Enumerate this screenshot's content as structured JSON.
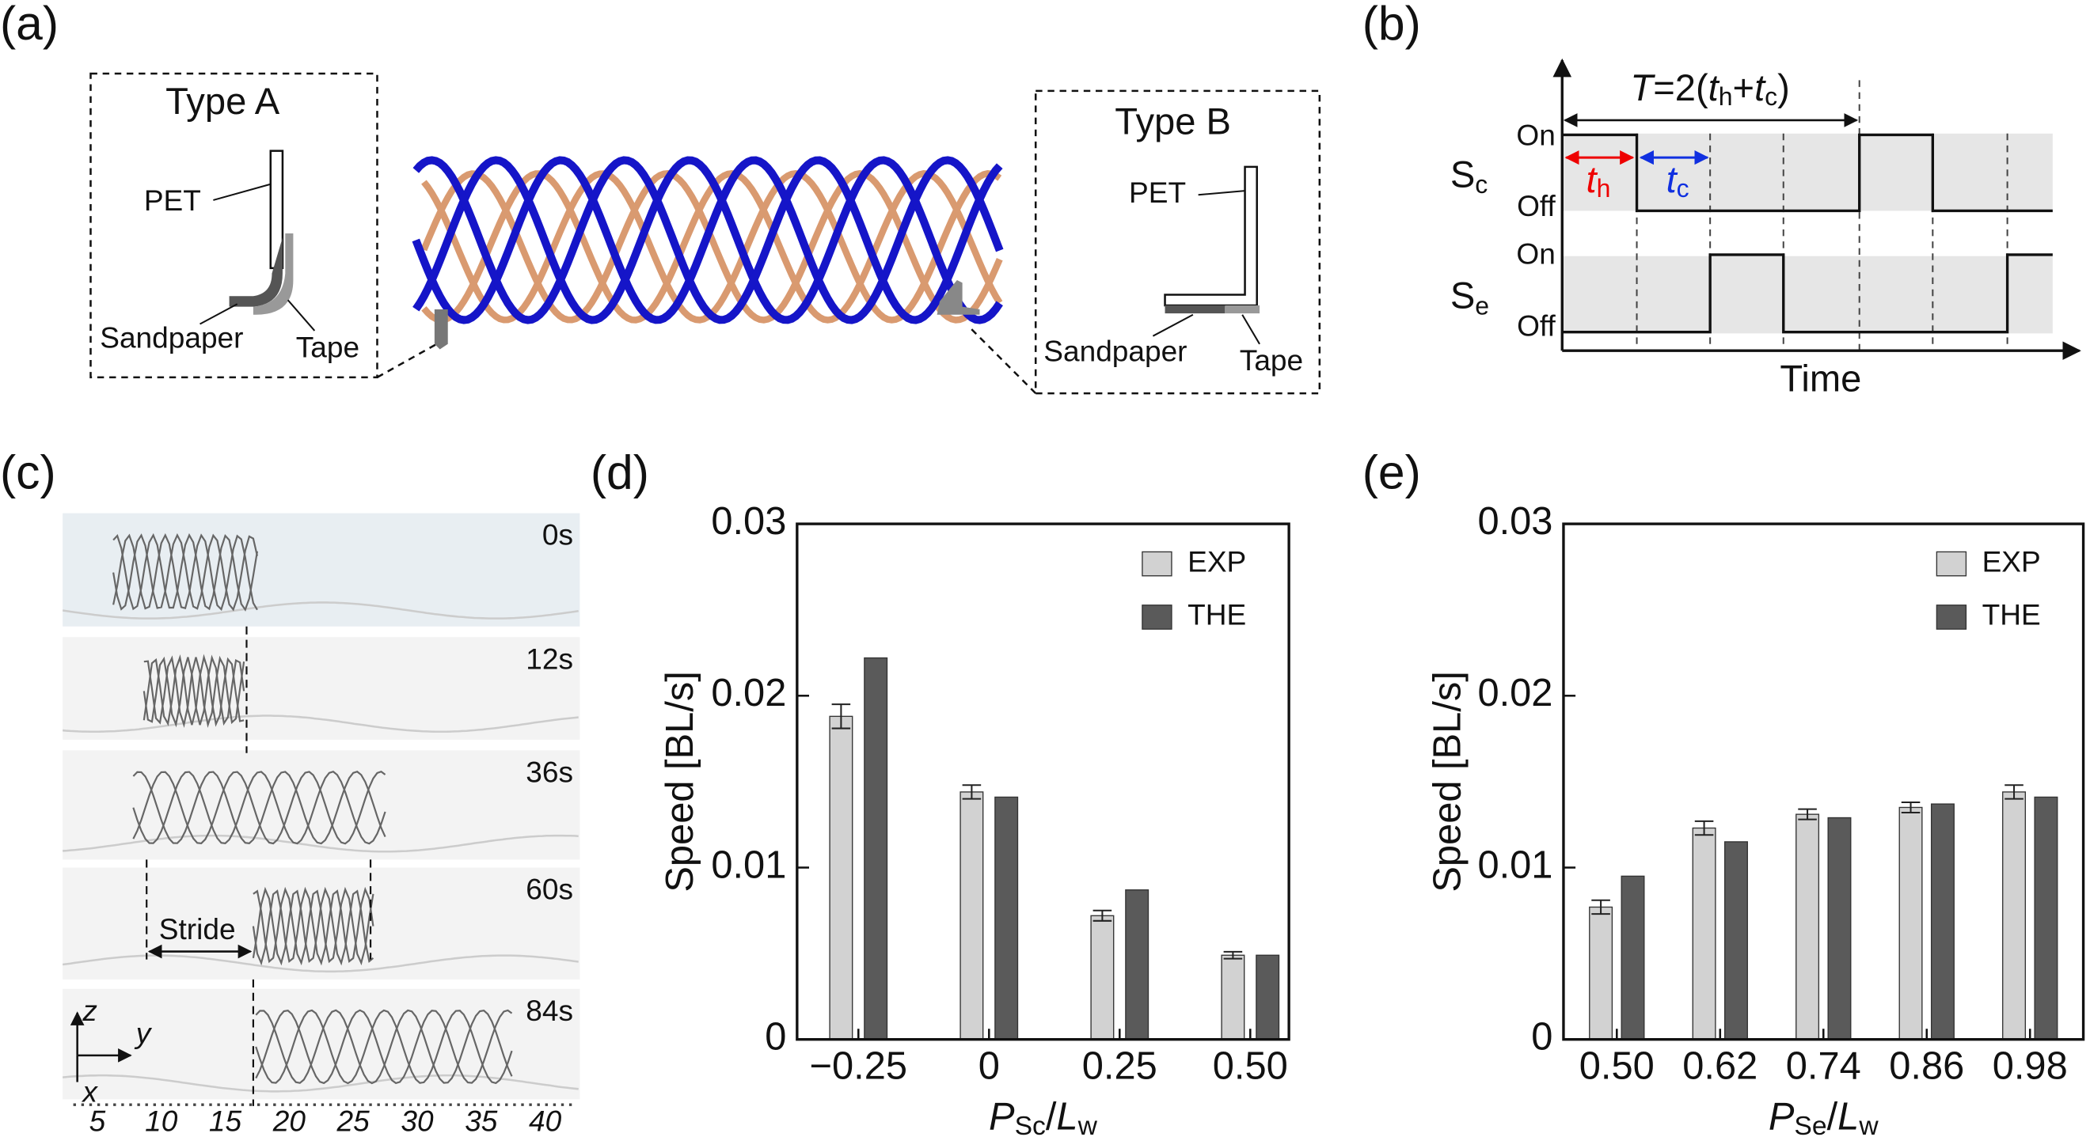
{
  "panels": {
    "a": "(a)",
    "b": "(b)",
    "c": "(c)",
    "d": "(d)",
    "e": "(e)"
  },
  "panel_a": {
    "type_a": {
      "title": "Type A",
      "pet": "PET",
      "sandpaper": "Sandpaper",
      "tape": "Tape"
    },
    "type_b": {
      "title": "Type B",
      "pet": "PET",
      "sandpaper": "Sandpaper",
      "tape": "Tape"
    }
  },
  "panel_b": {
    "period": {
      "t": "T",
      "eq": "=2(",
      "t1": "t",
      "h": "h",
      "plus": "+",
      "t2": "t",
      "c": "c",
      "close": ")"
    },
    "th": {
      "t": "t",
      "sub": "h"
    },
    "tc": {
      "t": "t",
      "sub": "c"
    },
    "sc": {
      "s": "S",
      "sub": "c",
      "on": "On",
      "off": "Off"
    },
    "se": {
      "s": "S",
      "sub": "e",
      "on": "On",
      "off": "Off"
    },
    "time": "Time"
  },
  "panel_c": {
    "times": [
      "0s",
      "12s",
      "36s",
      "60s",
      "84s"
    ],
    "stride": "Stride",
    "axes": {
      "z": "z",
      "y": "y",
      "x": "x"
    },
    "ruler": [
      "5",
      "10",
      "15",
      "20",
      "25",
      "30",
      "35",
      "40"
    ]
  },
  "chart_data": [
    {
      "type": "bar",
      "y_label": "Speed [BL/s]",
      "x_label": {
        "p": "P",
        "p_sub": "Sc",
        "sep": "/",
        "l": "L",
        "l_sub": "w"
      },
      "categories": [
        "−0.25",
        "0",
        "0.25",
        "0.50"
      ],
      "series": [
        {
          "name": "EXP",
          "color": "#d2d2d2",
          "values": [
            0.0188,
            0.0144,
            0.0072,
            0.0049
          ],
          "errors": [
            0.0007,
            0.0004,
            0.0003,
            0.0002
          ]
        },
        {
          "name": "THE",
          "color": "#5a5a5a",
          "values": [
            0.0222,
            0.0141,
            0.0087,
            0.0049
          ]
        }
      ],
      "ylim": [
        0,
        0.03
      ],
      "yticks": [
        0,
        0.01,
        0.02,
        0.03
      ],
      "legend": "upper right"
    },
    {
      "type": "bar",
      "y_label": "Speed [BL/s]",
      "x_label": {
        "p": "P",
        "p_sub": "Se",
        "sep": "/",
        "l": "L",
        "l_sub": "w"
      },
      "categories": [
        "0.50",
        "0.62",
        "0.74",
        "0.86",
        "0.98"
      ],
      "series": [
        {
          "name": "EXP",
          "color": "#d2d2d2",
          "values": [
            0.0077,
            0.0123,
            0.0131,
            0.0135,
            0.0144
          ],
          "errors": [
            0.0004,
            0.0004,
            0.0003,
            0.0003,
            0.0004
          ]
        },
        {
          "name": "THE",
          "color": "#5a5a5a",
          "values": [
            0.0095,
            0.0115,
            0.0129,
            0.0137,
            0.0141
          ]
        }
      ],
      "ylim": [
        0,
        0.03
      ],
      "yticks": [
        0,
        0.01,
        0.02,
        0.03
      ],
      "legend": "upper right"
    }
  ]
}
